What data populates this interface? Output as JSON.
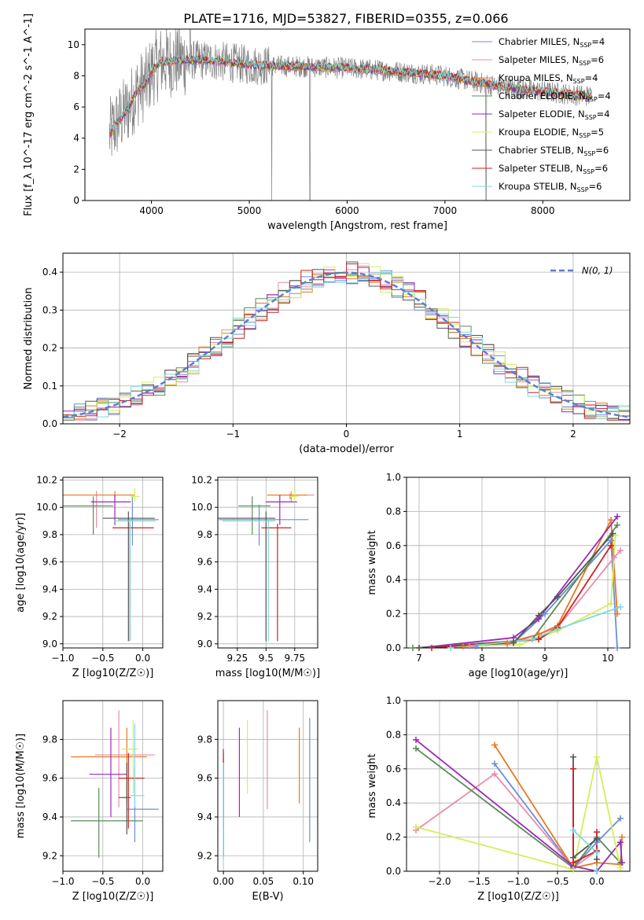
{
  "figure": {
    "title": "PLATE=1716, MJD=53827, FIBERID=0355, z=0.066"
  },
  "colors": {
    "Chabrier MILES": "#6a8fd8",
    "Salpeter MILES": "#e98aae",
    "Kroupa MILES": "#e87820",
    "Chabrier ELODIE": "#5b8a5b",
    "Salpeter ELODIE": "#9a28b8",
    "Kroupa ELODIE": "#d4ee5a",
    "Chabrier STELIB": "#555555",
    "Salpeter STELIB": "#cc2222",
    "Kroupa STELIB": "#7fd8de",
    "data": "#808080",
    "gaussian": "#5b7fd0"
  },
  "chart_data": [
    {
      "id": "spectrum",
      "type": "line",
      "title": "PLATE=1716, MJD=53827, FIBERID=0355, z=0.066",
      "xlabel": "wavelength [Angstrom, rest frame]",
      "ylabel": "Flux [f_λ 10^-17 erg cm^-2 s^-1 A^-1]",
      "xlim": [
        3320,
        8890
      ],
      "ylim": [
        0,
        11
      ],
      "xticks": [
        4000,
        5000,
        6000,
        7000,
        8000
      ],
      "yticks": [
        0,
        2,
        4,
        6,
        8,
        10
      ],
      "legend_position": "top-right",
      "grid": false,
      "data_continuum": {
        "x": [
          3570,
          3650,
          3750,
          3850,
          3950,
          4000,
          4100,
          4300,
          4600,
          5000,
          5500,
          6000,
          6500,
          7000,
          7400,
          7700,
          8000,
          8300,
          8500
        ],
        "y": [
          4.2,
          5.0,
          5.8,
          7.0,
          7.5,
          8.3,
          8.9,
          9.0,
          9.0,
          8.7,
          8.6,
          8.5,
          8.3,
          8.0,
          7.5,
          7.2,
          7.0,
          6.8,
          6.7
        ]
      },
      "series": [
        {
          "name": "Chabrier MILES",
          "nssp": "4"
        },
        {
          "name": "Salpeter MILES",
          "nssp": "6"
        },
        {
          "name": "Kroupa MILES",
          "nssp": "4"
        },
        {
          "name": "Chabrier ELODIE",
          "nssp": "4"
        },
        {
          "name": "Salpeter ELODIE",
          "nssp": "4"
        },
        {
          "name": "Kroupa ELODIE",
          "nssp": "5"
        },
        {
          "name": "Chabrier STELIB",
          "nssp": "6"
        },
        {
          "name": "Salpeter STELIB",
          "nssp": "6"
        },
        {
          "name": "Kroupa STELIB",
          "nssp": "6"
        }
      ]
    },
    {
      "id": "residuals",
      "type": "line",
      "xlabel": "(data-model)/error",
      "ylabel": "Normed distribution",
      "xlim": [
        -2.5,
        2.5
      ],
      "ylim": [
        0,
        0.45
      ],
      "xticks": [
        -2,
        -1,
        0,
        1,
        2
      ],
      "yticks": [
        0.0,
        0.1,
        0.2,
        0.3,
        0.4
      ],
      "grid": true,
      "legend": {
        "label": "N(0, 1)",
        "position": "top-right"
      },
      "bin_width": 0.1,
      "histogram_model_template": "normal(0,1) with ±0.03 scatter per series"
    },
    {
      "id": "age_vs_Z",
      "type": "scatter",
      "xlabel": "Z [log10(Z/Z☉)]",
      "ylabel": "age  [log10(age/yr)]",
      "xlim": [
        -1.0,
        0.25
      ],
      "ylim": [
        8.97,
        10.22
      ],
      "xticks": [
        -1.0,
        -0.5,
        0.0
      ],
      "yticks": [
        9.0,
        9.2,
        9.4,
        9.6,
        9.8,
        10.0,
        10.2
      ],
      "grid": true,
      "points": [
        {
          "series": "Chabrier MILES",
          "x": -0.13,
          "y": 9.91,
          "xlo": 0.18,
          "xhi": 0.33,
          "ylo": 9.72,
          "yhi": 10.08
        },
        {
          "series": "Salpeter MILES",
          "x": -0.58,
          "y": 10.01,
          "xlo": 0.05,
          "xhi": 0.05,
          "ylo": 9.85,
          "yhi": 10.12
        },
        {
          "series": "Kroupa MILES",
          "x": -0.35,
          "y": 10.09,
          "xlo": 0.9,
          "xhi": 0.25,
          "ylo": 10.06,
          "yhi": 10.12
        },
        {
          "series": "Chabrier ELODIE",
          "x": -0.62,
          "y": 10.01,
          "xlo": 0.38,
          "xhi": 0.25,
          "ylo": 9.8,
          "yhi": 10.08
        },
        {
          "series": "Salpeter ELODIE",
          "x": -0.35,
          "y": 10.04,
          "xlo": 0.3,
          "xhi": 0.2,
          "ylo": 9.87,
          "yhi": 10.09
        },
        {
          "series": "Kroupa ELODIE",
          "x": -0.1,
          "y": 10.08,
          "xlo": 0.06,
          "xhi": 0.06,
          "ylo": 10.04,
          "yhi": 10.14
        },
        {
          "series": "Chabrier STELIB",
          "x": -0.18,
          "y": 9.92,
          "xlo": 0.32,
          "xhi": 0.33,
          "ylo": 9.02,
          "yhi": 9.97
        },
        {
          "series": "Salpeter STELIB",
          "x": -0.16,
          "y": 9.85,
          "xlo": 0.22,
          "xhi": 0.3,
          "ylo": 9.02,
          "yhi": 9.88
        },
        {
          "series": "Kroupa STELIB",
          "x": -0.16,
          "y": 9.9,
          "xlo": 0.2,
          "xhi": 0.32,
          "ylo": 9.02,
          "yhi": 9.92
        }
      ]
    },
    {
      "id": "age_vs_mass",
      "type": "scatter",
      "xlabel": "mass [log10(M/M☉)]",
      "ylabel": "",
      "xlim": [
        9.08,
        9.95
      ],
      "ylim": [
        8.97,
        10.22
      ],
      "xticks": [
        9.25,
        9.5,
        9.75
      ],
      "yticks": [
        9.0,
        9.2,
        9.4,
        9.6,
        9.8,
        10.0,
        10.2
      ],
      "grid": true,
      "points": [
        {
          "series": "Chabrier MILES",
          "x": 9.44,
          "y": 9.91,
          "xlo": 0.35,
          "xhi": 0.43,
          "ylo": 9.72,
          "yhi": 10.02
        },
        {
          "series": "Salpeter MILES",
          "x": 9.72,
          "y": 10.09,
          "xlo": 0.18,
          "xhi": 0.2,
          "ylo": 10.04,
          "yhi": 10.12
        },
        {
          "series": "Kroupa MILES",
          "x": 9.71,
          "y": 10.09,
          "xlo": 0.2,
          "xhi": 0.15,
          "ylo": 10.06,
          "yhi": 10.1
        },
        {
          "series": "Chabrier ELODIE",
          "x": 9.38,
          "y": 10.01,
          "xlo": 0.12,
          "xhi": 0.16,
          "ylo": 9.8,
          "yhi": 10.08
        },
        {
          "series": "Salpeter ELODIE",
          "x": 9.62,
          "y": 10.04,
          "xlo": 0.12,
          "xhi": 0.15,
          "ylo": 9.87,
          "yhi": 10.09
        },
        {
          "series": "Kroupa ELODIE",
          "x": 9.75,
          "y": 10.08,
          "xlo": 0.04,
          "xhi": 0.03,
          "ylo": 10.04,
          "yhi": 10.14
        },
        {
          "series": "Chabrier STELIB",
          "x": 9.5,
          "y": 9.92,
          "xlo": 0.46,
          "xhi": 0.08,
          "ylo": 9.02,
          "yhi": 9.97
        },
        {
          "series": "Salpeter STELIB",
          "x": 9.6,
          "y": 9.85,
          "xlo": 0.14,
          "xhi": 0.12,
          "ylo": 9.02,
          "yhi": 9.88
        },
        {
          "series": "Kroupa STELIB",
          "x": 9.52,
          "y": 9.9,
          "xlo": 0.4,
          "xhi": 0.06,
          "ylo": 9.02,
          "yhi": 9.92
        }
      ]
    },
    {
      "id": "weight_vs_age",
      "type": "line",
      "xlabel": "age  [log10(age/yr)]",
      "ylabel": "mass weight",
      "xlim": [
        6.8,
        10.35
      ],
      "ylim": [
        0,
        1.0
      ],
      "xticks": [
        7,
        8,
        9,
        10
      ],
      "yticks": [
        0.0,
        0.2,
        0.4,
        0.6,
        0.8,
        1.0
      ],
      "grid": true,
      "series": [
        {
          "name": "Chabrier MILES",
          "x": [
            7.9,
            8.5,
            9.0,
            10.05,
            10.15
          ],
          "y": [
            0.01,
            0.03,
            0.2,
            0.63,
            0.0
          ]
        },
        {
          "name": "Salpeter MILES",
          "x": [
            7.8,
            8.4,
            8.9,
            9.2,
            10.1,
            10.2
          ],
          "y": [
            0.01,
            0.02,
            0.08,
            0.12,
            0.53,
            0.57
          ]
        },
        {
          "name": "Kroupa MILES",
          "x": [
            7.7,
            8.4,
            8.9,
            9.2,
            10.05,
            10.15
          ],
          "y": [
            0.01,
            0.03,
            0.08,
            0.13,
            0.75,
            0.2
          ]
        },
        {
          "name": "Chabrier ELODIE",
          "x": [
            6.9,
            8.5,
            8.8,
            10.15
          ],
          "y": [
            0.0,
            0.04,
            0.05,
            0.72
          ]
        },
        {
          "name": "Salpeter ELODIE",
          "x": [
            7.0,
            8.5,
            8.9,
            10.15
          ],
          "y": [
            0.0,
            0.06,
            0.17,
            0.77
          ]
        },
        {
          "name": "Kroupa ELODIE",
          "x": [
            7.0,
            8.6,
            9.2,
            10.05,
            10.12
          ],
          "y": [
            0.0,
            0.02,
            0.1,
            0.26,
            0.66
          ]
        },
        {
          "name": "Chabrier STELIB",
          "x": [
            7.0,
            8.5,
            8.9,
            9.2,
            10.08
          ],
          "y": [
            0.0,
            0.03,
            0.19,
            0.3,
            0.67
          ]
        },
        {
          "name": "Salpeter STELIB",
          "x": [
            7.2,
            8.9,
            9.2,
            10.05
          ],
          "y": [
            0.0,
            0.05,
            0.12,
            0.6
          ]
        },
        {
          "name": "Kroupa STELIB",
          "x": [
            7.5,
            8.8,
            9.2,
            10.2
          ],
          "y": [
            0.0,
            0.05,
            0.11,
            0.24
          ]
        }
      ]
    },
    {
      "id": "mass_vs_Z",
      "type": "scatter",
      "xlabel": "Z [log10(Z/Z☉)]",
      "ylabel": "mass [log10(M/M☉)]",
      "xlim": [
        -1.0,
        0.25
      ],
      "ylim": [
        9.12,
        10.0
      ],
      "xticks": [
        -1.0,
        -0.5,
        0.0
      ],
      "yticks": [
        9.2,
        9.4,
        9.6,
        9.8
      ],
      "grid": true,
      "points": [
        {
          "series": "Chabrier MILES",
          "x": -0.1,
          "y": 9.44,
          "xlo": 0.1,
          "xhi": 0.3,
          "ylo": 9.27,
          "yhi": 9.65
        },
        {
          "series": "Salpeter MILES",
          "x": -0.3,
          "y": 9.72,
          "xlo": 0.3,
          "xhi": 0.45,
          "ylo": 9.45,
          "yhi": 9.95
        },
        {
          "series": "Kroupa MILES",
          "x": -0.2,
          "y": 9.71,
          "xlo": 0.7,
          "xhi": 0.25,
          "ylo": 9.47,
          "yhi": 9.86
        },
        {
          "series": "Chabrier ELODIE",
          "x": -0.55,
          "y": 9.38,
          "xlo": 0.35,
          "xhi": 0.55,
          "ylo": 9.19,
          "yhi": 9.55
        },
        {
          "series": "Salpeter ELODIE",
          "x": -0.4,
          "y": 9.62,
          "xlo": 0.27,
          "xhi": 0.2,
          "ylo": 9.4,
          "yhi": 9.86
        },
        {
          "series": "Kroupa ELODIE",
          "x": -0.12,
          "y": 9.75,
          "xlo": 0.15,
          "xhi": 0.06,
          "ylo": 9.52,
          "yhi": 9.9
        },
        {
          "series": "Chabrier STELIB",
          "x": -0.2,
          "y": 9.5,
          "xlo": 0.1,
          "xhi": 0.05,
          "ylo": 9.31,
          "yhi": 9.68
        },
        {
          "series": "Salpeter STELIB",
          "x": -0.18,
          "y": 9.6,
          "xlo": 0.12,
          "xhi": 0.2,
          "ylo": 9.34,
          "yhi": 9.73
        },
        {
          "series": "Kroupa STELIB",
          "x": -0.1,
          "y": 9.51,
          "xlo": 0.06,
          "xhi": 0.12,
          "ylo": 9.45,
          "yhi": 9.88
        }
      ]
    },
    {
      "id": "mass_vs_ebv",
      "type": "scatter",
      "xlabel": "E(B-V)",
      "ylabel": "",
      "xlim": [
        -0.007,
        0.118
      ],
      "ylim": [
        9.12,
        10.0
      ],
      "xticks": [
        0.0,
        0.05,
        0.1
      ],
      "yticks": [
        9.2,
        9.4,
        9.6,
        9.8
      ],
      "grid": true,
      "points": [
        {
          "series": "Chabrier MILES",
          "x": 0.108,
          "y": 9.6,
          "ylo": 9.27,
          "yhi": 9.91
        },
        {
          "series": "Salpeter MILES",
          "x": 0.055,
          "y": 9.7,
          "ylo": 9.44,
          "yhi": 9.95
        },
        {
          "series": "Kroupa MILES",
          "x": 0.095,
          "y": 9.67,
          "ylo": 9.47,
          "yhi": 9.86
        },
        {
          "series": "Chabrier ELODIE",
          "x": 0.0,
          "y": 9.4,
          "ylo": 9.2,
          "yhi": 9.73
        },
        {
          "series": "Salpeter ELODIE",
          "x": 0.02,
          "y": 9.62,
          "ylo": 9.4,
          "yhi": 9.86
        },
        {
          "series": "Kroupa ELODIE",
          "x": 0.03,
          "y": 9.72,
          "ylo": 9.52,
          "yhi": 9.9
        },
        {
          "series": "Chabrier STELIB",
          "x": 0.0,
          "y": 9.45,
          "ylo": 9.2,
          "yhi": 9.7
        },
        {
          "series": "Salpeter STELIB",
          "x": 0.0,
          "y": 9.55,
          "ylo": 9.35,
          "yhi": 9.75
        },
        {
          "series": "Kroupa STELIB",
          "x": 0.0,
          "y": 9.45,
          "ylo": 9.18,
          "yhi": 9.68
        }
      ]
    },
    {
      "id": "weight_vs_Z",
      "type": "line",
      "xlabel": "Z [log10(Z/Z☉)]",
      "ylabel": "mass weight",
      "xlim": [
        -2.42,
        0.42
      ],
      "ylim": [
        0,
        1.0
      ],
      "xticks": [
        -2.0,
        -1.5,
        -1.0,
        -0.5,
        0.0
      ],
      "yticks": [
        0.0,
        0.2,
        0.4,
        0.6,
        0.8,
        1.0
      ],
      "grid": true,
      "series": [
        {
          "name": "Chabrier MILES",
          "x": [
            -1.3,
            -0.3,
            0.0,
            0.3
          ],
          "y": [
            0.63,
            0.02,
            0.17,
            0.31
          ]
        },
        {
          "name": "Salpeter MILES",
          "x": [
            -2.3,
            -1.3,
            -0.3,
            0.0
          ],
          "y": [
            0.24,
            0.57,
            0.02,
            0.12
          ]
        },
        {
          "name": "Kroupa MILES",
          "x": [
            -1.3,
            -0.3,
            0.0,
            0.3,
            0.32
          ],
          "y": [
            0.74,
            0.02,
            0.05,
            0.04,
            0.2
          ]
        },
        {
          "name": "Chabrier ELODIE",
          "x": [
            -2.3,
            -0.3,
            0.0,
            0.3
          ],
          "y": [
            0.72,
            0.02,
            0.2,
            0.05
          ]
        },
        {
          "name": "Salpeter ELODIE",
          "x": [
            -2.3,
            -0.3,
            0.0,
            0.3,
            0.32
          ],
          "y": [
            0.77,
            0.03,
            0.0,
            0.17,
            0.05
          ]
        },
        {
          "name": "Kroupa ELODIE",
          "x": [
            -2.3,
            -0.3,
            0.0,
            0.3
          ],
          "y": [
            0.26,
            0.01,
            0.67,
            0.02
          ]
        },
        {
          "name": "Chabrier STELIB",
          "x": [
            -0.3,
            -0.3,
            0.0,
            0.0
          ],
          "y": [
            0.67,
            0.08,
            0.19,
            0.07
          ]
        },
        {
          "name": "Salpeter STELIB",
          "x": [
            -0.3,
            -0.3,
            0.0,
            0.0
          ],
          "y": [
            0.6,
            0.05,
            0.12,
            0.23
          ]
        },
        {
          "name": "Kroupa STELIB",
          "x": [
            -0.3,
            0.0,
            0.0
          ],
          "y": [
            0.24,
            0.11,
            0.0
          ]
        }
      ]
    }
  ]
}
